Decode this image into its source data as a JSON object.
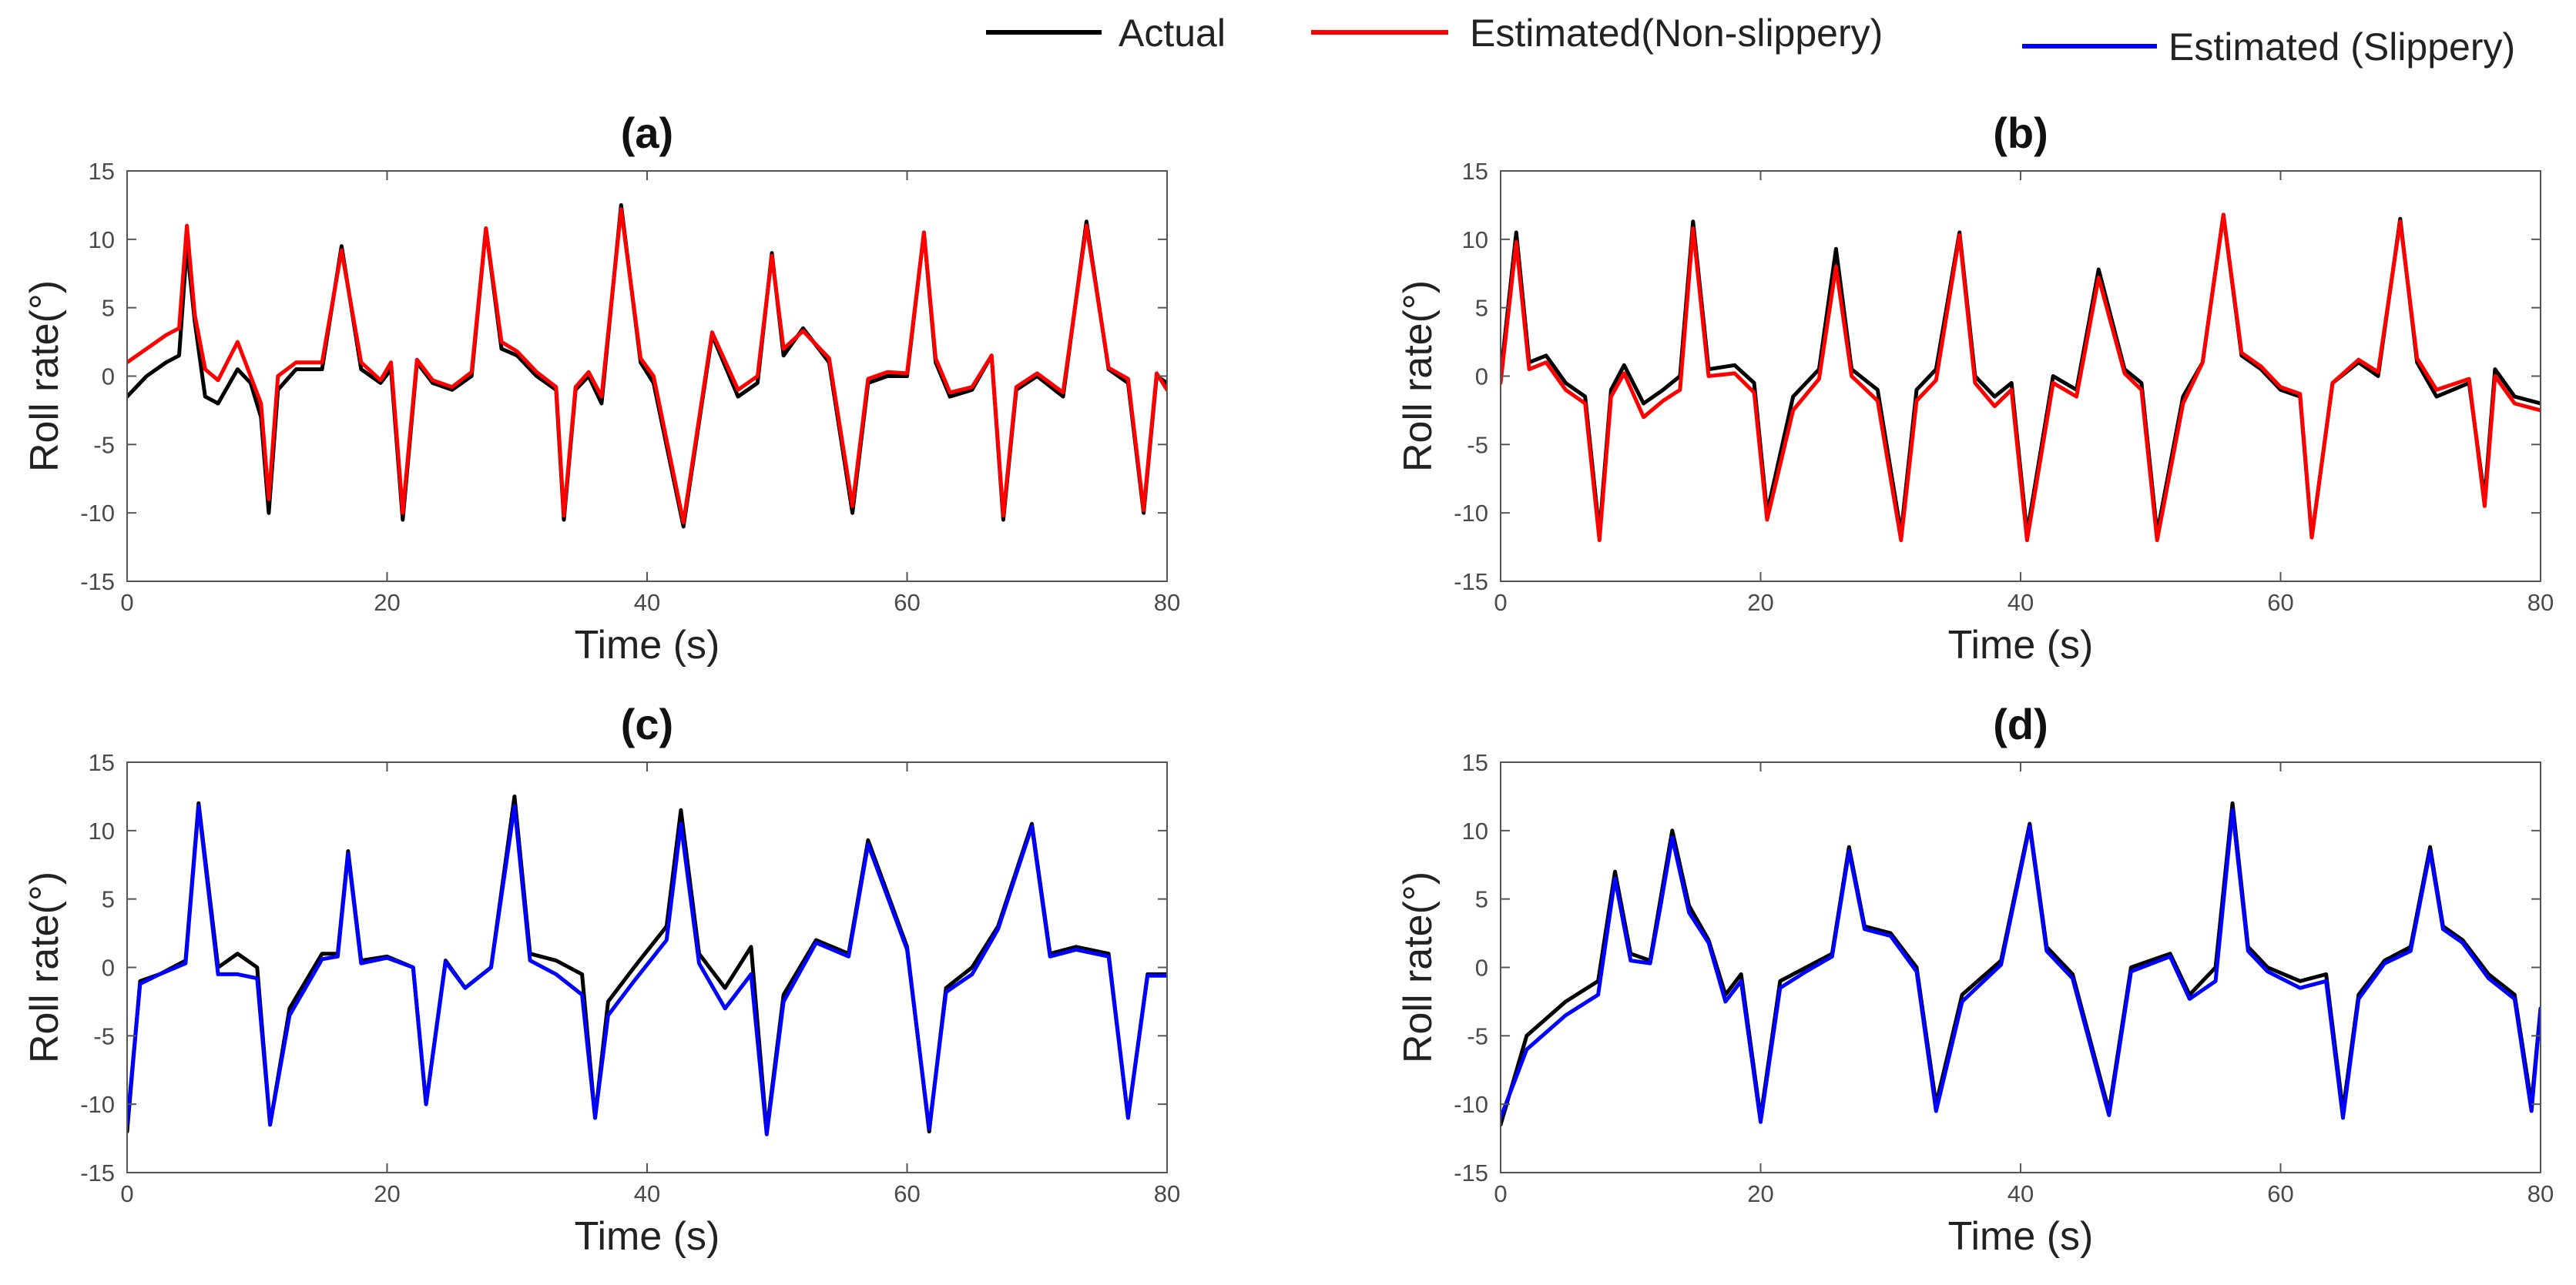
{
  "legend": [
    {
      "name": "Actual",
      "color": "#000000"
    },
    {
      "name": "Estimated(Non-slippery)",
      "color": "#ff0000"
    },
    {
      "name": "Estimated (Slippery)",
      "color": "#0000ff"
    }
  ],
  "chart_data": [
    {
      "type": "line",
      "panel": "a",
      "title": "(a)",
      "xlabel": "Time (s)",
      "ylabel": "Roll rate(°)",
      "xlim": [
        0,
        80
      ],
      "ylim": [
        -15,
        15
      ],
      "xticks": [
        "0",
        "20",
        "40",
        "60",
        "80"
      ],
      "yticks": [
        "15",
        "10",
        "5",
        "0",
        "-5",
        "-10",
        "-15"
      ],
      "grid": false,
      "series": [
        {
          "name": "Actual",
          "color": "#000000",
          "x": [
            0,
            1.5,
            3,
            4,
            4.6,
            5.2,
            6,
            7,
            8.5,
            9.5,
            10.3,
            10.9,
            11.6,
            13,
            15,
            16.5,
            18,
            19.5,
            20.3,
            21.2,
            22.3,
            23.5,
            25,
            26.5,
            27.6,
            28.8,
            30,
            31.5,
            33,
            33.6,
            34.5,
            35.5,
            36.5,
            38,
            39.5,
            40.5,
            42.8,
            45,
            47,
            48.5,
            49.6,
            50.5,
            52,
            54,
            55.8,
            57,
            58.5,
            60,
            61.3,
            62.2,
            63.3,
            65,
            66.5,
            67.4,
            68.4,
            70,
            72,
            73.8,
            75.5,
            77,
            78.2,
            79.2,
            80
          ],
          "y": [
            -1.5,
            0,
            1,
            1.5,
            9.5,
            4,
            -1.5,
            -2,
            0.5,
            -0.5,
            -3,
            -10,
            -1,
            0.5,
            0.5,
            9.5,
            0.5,
            -0.5,
            0.5,
            -10.5,
            1,
            -0.5,
            -1,
            0,
            10.8,
            2,
            1.5,
            0,
            -1,
            -10.5,
            -1,
            0,
            -2,
            12.5,
            1,
            -0.5,
            -11,
            3,
            -1.5,
            -0.5,
            9,
            1.5,
            3.5,
            1,
            -10,
            -0.5,
            0,
            0,
            10.5,
            1,
            -1.5,
            -1,
            1.5,
            -10.5,
            -1,
            0,
            -1.5,
            11.3,
            0.5,
            -0.5,
            -10,
            0,
            -0.5
          ]
        },
        {
          "name": "Estimated(Non-slippery)",
          "color": "#ff0000",
          "x": [
            0,
            1.5,
            3,
            4,
            4.6,
            5.2,
            6,
            7,
            8.5,
            9.5,
            10.3,
            10.9,
            11.6,
            13,
            15,
            16.5,
            18,
            19.5,
            20.3,
            21.2,
            22.3,
            23.5,
            25,
            26.5,
            27.6,
            28.8,
            30,
            31.5,
            33,
            33.6,
            34.5,
            35.5,
            36.5,
            38,
            39.5,
            40.5,
            42.8,
            45,
            47,
            48.5,
            49.6,
            50.5,
            52,
            54,
            55.8,
            57,
            58.5,
            60,
            61.3,
            62.2,
            63.3,
            65,
            66.5,
            67.4,
            68.4,
            70,
            72,
            73.8,
            75.5,
            77,
            78.2,
            79.2,
            80
          ],
          "y": [
            1,
            2,
            3,
            3.5,
            11,
            4.5,
            0.5,
            -0.3,
            2.5,
            0,
            -2,
            -9,
            0,
            1,
            1,
            9.2,
            1,
            -0.3,
            1,
            -10,
            1.2,
            -0.3,
            -0.8,
            0.3,
            10.8,
            2.5,
            1.8,
            0.3,
            -0.8,
            -10.2,
            -0.8,
            0.3,
            -1.5,
            12.2,
            1.3,
            0,
            -10.7,
            3.2,
            -1,
            0,
            8.8,
            2,
            3.3,
            1.3,
            -9.5,
            -0.2,
            0.3,
            0.2,
            10.5,
            1.3,
            -1.2,
            -0.8,
            1.5,
            -10.2,
            -0.8,
            0.2,
            -1.2,
            11,
            0.6,
            -0.2,
            -9.8,
            0.2,
            -1
          ]
        }
      ]
    },
    {
      "type": "line",
      "panel": "b",
      "title": "(b)",
      "xlabel": "Time (s)",
      "ylabel": "Roll rate(°)",
      "xlim": [
        0,
        80
      ],
      "ylim": [
        -15,
        15
      ],
      "xticks": [
        "0",
        "20",
        "40",
        "60",
        "80"
      ],
      "yticks": [
        "15",
        "10",
        "5",
        "0",
        "-5",
        "-10",
        "-15"
      ],
      "grid": false,
      "series": [
        {
          "name": "Actual",
          "color": "#000000",
          "x": [
            0,
            1.2,
            2.2,
            3.5,
            5,
            6.5,
            7.6,
            8.5,
            9.5,
            11,
            12.5,
            13.8,
            14.8,
            16,
            18,
            19.5,
            20.5,
            22.5,
            24.5,
            25.8,
            27,
            29,
            30.8,
            32,
            33.5,
            35.3,
            36.5,
            38,
            39.3,
            40.5,
            42.5,
            44.3,
            46,
            48,
            49.3,
            50.5,
            52.5,
            54,
            55.6,
            57,
            58.5,
            60,
            61.5,
            62.4,
            64,
            66,
            67.5,
            69.2,
            70.5,
            72,
            74.5,
            75.7,
            76.5,
            78,
            80
          ],
          "y": [
            0,
            10.5,
            1,
            1.5,
            -0.5,
            -1.5,
            -11.5,
            -1,
            0.8,
            -2,
            -1,
            0,
            11.3,
            0.5,
            0.8,
            -0.5,
            -10,
            -1.5,
            0.5,
            9.3,
            0.5,
            -1,
            -11.5,
            -1,
            0.5,
            10.5,
            0,
            -1.5,
            -0.5,
            -11.5,
            0,
            -1,
            7.8,
            0.5,
            -0.5,
            -11.5,
            -1.5,
            1,
            11.8,
            1.5,
            0.5,
            -1,
            -1.5,
            -11.8,
            -0.5,
            1,
            0,
            11.5,
            1,
            -1.5,
            -0.5,
            -9,
            0.5,
            -1.5,
            -2
          ]
        },
        {
          "name": "Estimated(Non-slippery)",
          "color": "#ff0000",
          "x": [
            0,
            1.2,
            2.2,
            3.5,
            5,
            6.5,
            7.6,
            8.5,
            9.5,
            11,
            12.5,
            13.8,
            14.8,
            16,
            18,
            19.5,
            20.5,
            22.5,
            24.5,
            25.8,
            27,
            29,
            30.8,
            32,
            33.5,
            35.3,
            36.5,
            38,
            39.3,
            40.5,
            42.5,
            44.3,
            46,
            48,
            49.3,
            50.5,
            52.5,
            54,
            55.6,
            57,
            58.5,
            60,
            61.5,
            62.4,
            64,
            66,
            67.5,
            69.2,
            70.5,
            72,
            74.5,
            75.7,
            76.5,
            78,
            80
          ],
          "y": [
            -0.5,
            9.8,
            0.5,
            1,
            -1,
            -2,
            -12,
            -1.5,
            0.2,
            -3,
            -1.8,
            -1,
            10.8,
            0,
            0.2,
            -1.2,
            -10.5,
            -2.5,
            -0.2,
            8,
            0,
            -1.8,
            -12,
            -1.8,
            -0.3,
            10.3,
            -0.5,
            -2.2,
            -1,
            -12,
            -0.5,
            -1.5,
            7.2,
            0.2,
            -1,
            -12,
            -2,
            1,
            11.8,
            1.7,
            0.7,
            -0.8,
            -1.3,
            -11.8,
            -0.5,
            1.2,
            0.3,
            11.3,
            1.3,
            -1,
            -0.2,
            -9.5,
            0,
            -2,
            -2.5
          ]
        }
      ]
    },
    {
      "type": "line",
      "panel": "c",
      "title": "(c)",
      "xlabel": "Time (s)",
      "ylabel": "Roll rate(°)",
      "xlim": [
        0,
        80
      ],
      "ylim": [
        -15,
        15
      ],
      "xticks": [
        "0",
        "20",
        "40",
        "60",
        "80"
      ],
      "yticks": [
        "15",
        "10",
        "5",
        "0",
        "-5",
        "-10",
        "-15"
      ],
      "grid": false,
      "series": [
        {
          "name": "Actual",
          "color": "#000000",
          "x": [
            0,
            1,
            2.5,
            4.5,
            5.5,
            7,
            8.5,
            10,
            11,
            12.5,
            15,
            16.2,
            17,
            18,
            20,
            22,
            23,
            24.5,
            26,
            28,
            29.8,
            31,
            33,
            35,
            36,
            37,
            39,
            41.5,
            42.6,
            44,
            46,
            48,
            49.2,
            50.5,
            53,
            55.5,
            57,
            60,
            61.7,
            63,
            65,
            67,
            69.6,
            71,
            73,
            75.5,
            77,
            78.5,
            80
          ],
          "y": [
            -12,
            -1,
            -0.5,
            0.5,
            12,
            0,
            1,
            0,
            -11.5,
            -3,
            1,
            1,
            8.5,
            0.5,
            0.8,
            0,
            -10,
            0.5,
            -1.5,
            0,
            12.5,
            1,
            0.5,
            -0.5,
            -11,
            -2.5,
            0,
            3,
            11.5,
            1,
            -1.5,
            1.5,
            -12,
            -2,
            2,
            1,
            9.3,
            1.5,
            -12,
            -1.5,
            0,
            3,
            10.5,
            1,
            1.5,
            1,
            -11,
            -0.5,
            -0.5
          ]
        },
        {
          "name": "Estimated (Slippery)",
          "color": "#0000ff",
          "x": [
            0,
            1,
            2.5,
            4.5,
            5.5,
            7,
            8.5,
            10,
            11,
            12.5,
            15,
            16.2,
            17,
            18,
            20,
            22,
            23,
            24.5,
            26,
            28,
            29.8,
            31,
            33,
            35,
            36,
            37,
            39,
            41.5,
            42.6,
            44,
            46,
            48,
            49.2,
            50.5,
            53,
            55.5,
            57,
            60,
            61.7,
            63,
            65,
            67,
            69.6,
            71,
            73,
            75.5,
            77,
            78.5,
            80
          ],
          "y": [
            -11.5,
            -1.2,
            -0.5,
            0.3,
            11.8,
            -0.5,
            -0.5,
            -0.8,
            -11.5,
            -3.5,
            0.6,
            0.8,
            8.3,
            0.3,
            0.7,
            0,
            -10,
            0.4,
            -1.5,
            0,
            11.8,
            0.5,
            -0.5,
            -2,
            -11,
            -3.5,
            -1,
            2,
            10.5,
            0.3,
            -3,
            -0.5,
            -12.2,
            -2.5,
            1.8,
            0.8,
            9,
            1.3,
            -11.8,
            -1.8,
            -0.5,
            2.8,
            10.3,
            0.8,
            1.3,
            0.8,
            -11,
            -0.6,
            -0.6
          ]
        }
      ]
    },
    {
      "type": "line",
      "panel": "d",
      "title": "(d)",
      "xlabel": "Time (s)",
      "ylabel": "Roll rate(°)",
      "xlim": [
        0,
        80
      ],
      "ylim": [
        -15,
        15
      ],
      "xticks": [
        "0",
        "20",
        "40",
        "60",
        "80"
      ],
      "yticks": [
        "15",
        "10",
        "5",
        "0",
        "-5",
        "-10",
        "-15"
      ],
      "grid": false,
      "series": [
        {
          "name": "Actual",
          "color": "#000000",
          "x": [
            0,
            2,
            5,
            7.5,
            8.8,
            10,
            11.5,
            12.3,
            13.2,
            14.5,
            16,
            17.3,
            18.5,
            20,
            21.5,
            23.5,
            25.5,
            26.8,
            28,
            30,
            32,
            33.5,
            35.5,
            38.5,
            40.7,
            42,
            44,
            46.8,
            48.5,
            51.5,
            53,
            55,
            56.3,
            57.5,
            59,
            61.5,
            63.5,
            64.8,
            66,
            68,
            70,
            71.5,
            72.5,
            74,
            76,
            78,
            79.3,
            80
          ],
          "y": [
            -11.5,
            -5,
            -2.5,
            -1,
            7,
            1,
            0.5,
            5,
            10,
            4.5,
            2,
            -2,
            -0.5,
            -11,
            -1,
            0,
            1,
            8.8,
            3,
            2.5,
            0,
            -10,
            -2,
            0.5,
            10.5,
            1.5,
            -0.5,
            -10.5,
            0,
            1,
            -2,
            0,
            12,
            1.5,
            0,
            -1,
            -0.5,
            -10.5,
            -2,
            0.5,
            1.5,
            8.8,
            3,
            2,
            -0.5,
            -2,
            -10,
            -3
          ]
        },
        {
          "name": "Estimated (Slippery)",
          "color": "#0000ff",
          "x": [
            0,
            2,
            5,
            7.5,
            8.8,
            10,
            11.5,
            12.3,
            13.2,
            14.5,
            16,
            17.3,
            18.5,
            20,
            21.5,
            23.5,
            25.5,
            26.8,
            28,
            30,
            32,
            33.5,
            35.5,
            38.5,
            40.7,
            42,
            44,
            46.8,
            48.5,
            51.5,
            53,
            55,
            56.3,
            57.5,
            59,
            61.5,
            63.5,
            64.8,
            66,
            68,
            70,
            71.5,
            72.5,
            74,
            76,
            78,
            79.3,
            80
          ],
          "y": [
            -11,
            -6,
            -3.5,
            -2,
            6.5,
            0.5,
            0.3,
            4.5,
            9.5,
            4,
            1.8,
            -2.5,
            -1,
            -11.3,
            -1.5,
            -0.3,
            0.8,
            8.5,
            2.8,
            2.3,
            -0.3,
            -10.5,
            -2.5,
            0.2,
            10.3,
            1.2,
            -0.8,
            -10.8,
            -0.3,
            0.8,
            -2.3,
            -1,
            11.5,
            1.2,
            -0.3,
            -1.5,
            -1,
            -11,
            -2.3,
            0.3,
            1.2,
            8.5,
            2.8,
            1.8,
            -0.8,
            -2.3,
            -10.5,
            -3
          ]
        }
      ]
    }
  ]
}
